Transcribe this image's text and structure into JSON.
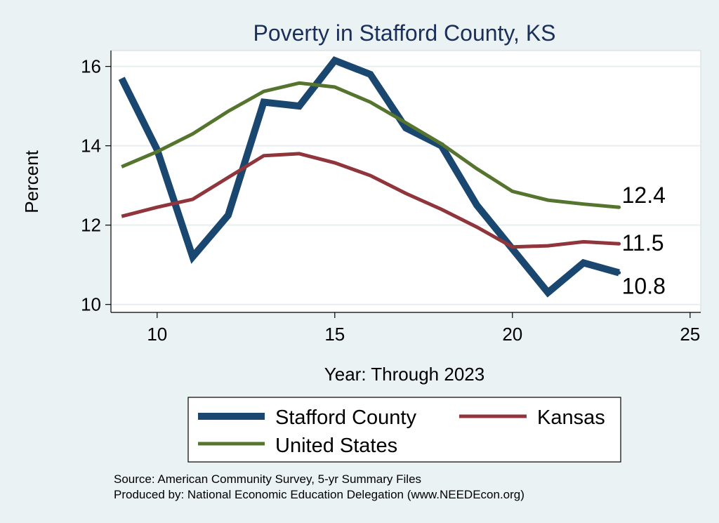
{
  "chart_data": {
    "type": "line",
    "title": "Poverty in Stafford County, KS",
    "xlabel": "Year: Through 2023",
    "ylabel": "Percent",
    "xlim": [
      8.7,
      25.3
    ],
    "ylim": [
      9.8,
      16.4
    ],
    "xticks": [
      10,
      15,
      20,
      25
    ],
    "yticks": [
      10,
      12,
      14,
      16
    ],
    "grid": "horizontal",
    "legend_position": "bottom",
    "x": [
      9,
      10,
      11,
      12,
      13,
      14,
      15,
      16,
      17,
      18,
      19,
      20,
      21,
      22,
      23
    ],
    "series": [
      {
        "name": "Stafford County",
        "color": "#1a476f",
        "values": [
          15.7,
          13.9,
          11.2,
          12.25,
          15.1,
          15.0,
          16.15,
          15.8,
          14.45,
          14.0,
          12.5,
          11.4,
          10.3,
          11.05,
          10.8
        ],
        "end_label": "10.8"
      },
      {
        "name": "Kansas",
        "color": "#90353b",
        "values": [
          12.22,
          12.45,
          12.65,
          13.2,
          13.75,
          13.8,
          13.57,
          13.25,
          12.8,
          12.4,
          11.95,
          11.45,
          11.48,
          11.58,
          11.53
        ],
        "end_label": "11.5"
      },
      {
        "name": "United States",
        "color": "#55752f",
        "values": [
          13.47,
          13.85,
          14.3,
          14.87,
          15.37,
          15.58,
          15.48,
          15.1,
          14.58,
          14.05,
          13.42,
          12.85,
          12.63,
          12.53,
          12.45
        ],
        "end_label": "12.4"
      }
    ]
  },
  "notes": {
    "source": "Source: American Community Survey, 5-yr Summary Files",
    "produced_by": "Produced by: National Economic Education Delegation (www.NEEDEcon.org)"
  }
}
